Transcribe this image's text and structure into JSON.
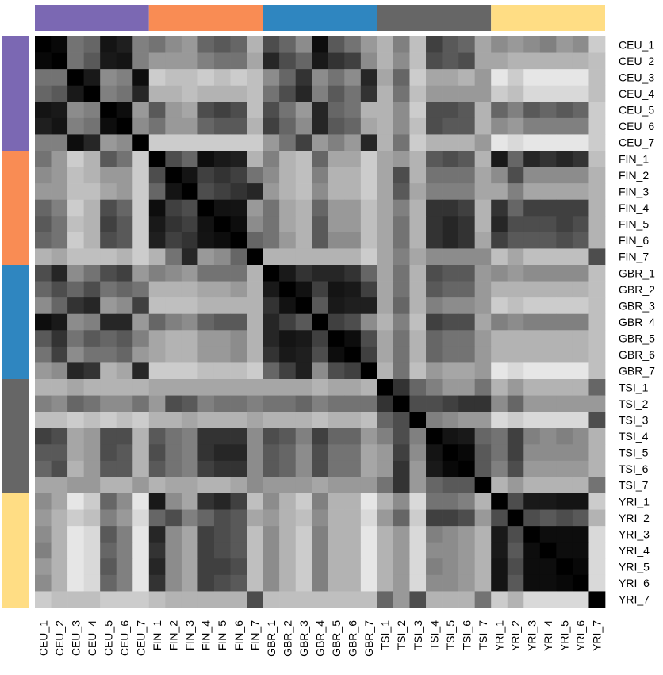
{
  "chart_data": {
    "type": "heatmap",
    "title": "",
    "xlabel": "",
    "ylabel": "",
    "colorscale": {
      "low": "#ffffff",
      "high": "#000000",
      "note_range": [
        0,
        1
      ]
    },
    "groups": [
      {
        "name": "CEU",
        "color": "#7B68B3",
        "members": [
          "CEU_1",
          "CEU_2",
          "CEU_3",
          "CEU_4",
          "CEU_5",
          "CEU_6",
          "CEU_7"
        ]
      },
      {
        "name": "FIN",
        "color": "#F98C54",
        "members": [
          "FIN_1",
          "FIN_2",
          "FIN_3",
          "FIN_4",
          "FIN_5",
          "FIN_6",
          "FIN_7"
        ]
      },
      {
        "name": "GBR",
        "color": "#2F86C0",
        "members": [
          "GBR_1",
          "GBR_2",
          "GBR_3",
          "GBR_4",
          "GBR_5",
          "GBR_6",
          "GBR_7"
        ]
      },
      {
        "name": "TSI",
        "color": "#666666",
        "members": [
          "TSI_1",
          "TSI_2",
          "TSI_3",
          "TSI_4",
          "TSI_5",
          "TSI_6",
          "TSI_7"
        ]
      },
      {
        "name": "YRI",
        "color": "#FFDD84",
        "members": [
          "YRI_1",
          "YRI_2",
          "YRI_3",
          "YRI_4",
          "YRI_5",
          "YRI_6",
          "YRI_7"
        ]
      }
    ],
    "labels": [
      "CEU_1",
      "CEU_2",
      "CEU_3",
      "CEU_4",
      "CEU_5",
      "CEU_6",
      "CEU_7",
      "FIN_1",
      "FIN_2",
      "FIN_3",
      "FIN_4",
      "FIN_5",
      "FIN_6",
      "FIN_7",
      "GBR_1",
      "GBR_2",
      "GBR_3",
      "GBR_4",
      "GBR_5",
      "GBR_6",
      "GBR_7",
      "TSI_1",
      "TSI_2",
      "TSI_3",
      "TSI_4",
      "TSI_5",
      "TSI_6",
      "TSI_7",
      "YRI_1",
      "YRI_2",
      "YRI_3",
      "YRI_4",
      "YRI_5",
      "YRI_6",
      "YRI_7"
    ],
    "matrix": [
      [
        1.0,
        0.97,
        0.55,
        0.6,
        0.92,
        0.88,
        0.5,
        0.55,
        0.45,
        0.4,
        0.6,
        0.65,
        0.6,
        0.3,
        0.7,
        0.6,
        0.45,
        0.95,
        0.65,
        0.55,
        0.4,
        0.3,
        0.5,
        0.25,
        0.75,
        0.65,
        0.6,
        0.35,
        0.45,
        0.4,
        0.45,
        0.5,
        0.4,
        0.45,
        0.2
      ],
      [
        0.97,
        1.0,
        0.55,
        0.65,
        0.9,
        0.92,
        0.5,
        0.4,
        0.4,
        0.4,
        0.5,
        0.55,
        0.55,
        0.35,
        0.85,
        0.7,
        0.6,
        0.9,
        0.8,
        0.75,
        0.45,
        0.3,
        0.45,
        0.25,
        0.7,
        0.65,
        0.7,
        0.35,
        0.35,
        0.3,
        0.3,
        0.3,
        0.3,
        0.3,
        0.25
      ],
      [
        0.55,
        0.55,
        1.0,
        0.9,
        0.45,
        0.5,
        0.95,
        0.2,
        0.25,
        0.25,
        0.2,
        0.25,
        0.2,
        0.25,
        0.45,
        0.6,
        0.8,
        0.45,
        0.55,
        0.45,
        0.85,
        0.35,
        0.6,
        0.2,
        0.35,
        0.35,
        0.3,
        0.4,
        0.1,
        0.2,
        0.1,
        0.1,
        0.1,
        0.1,
        0.25
      ],
      [
        0.6,
        0.65,
        0.9,
        1.0,
        0.5,
        0.55,
        0.85,
        0.3,
        0.3,
        0.25,
        0.3,
        0.3,
        0.3,
        0.25,
        0.55,
        0.7,
        0.85,
        0.5,
        0.65,
        0.55,
        0.8,
        0.3,
        0.55,
        0.25,
        0.4,
        0.4,
        0.4,
        0.4,
        0.2,
        0.25,
        0.15,
        0.15,
        0.15,
        0.15,
        0.25
      ],
      [
        0.92,
        0.9,
        0.45,
        0.5,
        1.0,
        0.95,
        0.4,
        0.65,
        0.4,
        0.35,
        0.7,
        0.75,
        0.7,
        0.25,
        0.7,
        0.55,
        0.4,
        0.85,
        0.6,
        0.55,
        0.3,
        0.3,
        0.45,
        0.2,
        0.7,
        0.7,
        0.65,
        0.3,
        0.6,
        0.5,
        0.65,
        0.6,
        0.65,
        0.6,
        0.2
      ],
      [
        0.88,
        0.92,
        0.5,
        0.55,
        0.95,
        1.0,
        0.45,
        0.55,
        0.4,
        0.4,
        0.6,
        0.65,
        0.65,
        0.3,
        0.75,
        0.6,
        0.45,
        0.85,
        0.65,
        0.6,
        0.35,
        0.3,
        0.45,
        0.25,
        0.7,
        0.65,
        0.65,
        0.3,
        0.45,
        0.4,
        0.5,
        0.5,
        0.5,
        0.5,
        0.2
      ],
      [
        0.5,
        0.5,
        0.95,
        0.85,
        0.4,
        0.45,
        1.0,
        0.2,
        0.2,
        0.2,
        0.2,
        0.2,
        0.2,
        0.2,
        0.4,
        0.55,
        0.75,
        0.4,
        0.5,
        0.4,
        0.85,
        0.3,
        0.55,
        0.2,
        0.3,
        0.3,
        0.3,
        0.4,
        0.1,
        0.15,
        0.1,
        0.1,
        0.1,
        0.1,
        0.2
      ],
      [
        0.55,
        0.4,
        0.2,
        0.3,
        0.65,
        0.55,
        0.2,
        1.0,
        0.7,
        0.6,
        0.95,
        0.9,
        0.88,
        0.3,
        0.5,
        0.3,
        0.25,
        0.6,
        0.35,
        0.35,
        0.2,
        0.35,
        0.4,
        0.3,
        0.65,
        0.7,
        0.65,
        0.3,
        0.9,
        0.6,
        0.85,
        0.8,
        0.85,
        0.8,
        0.25
      ],
      [
        0.45,
        0.4,
        0.25,
        0.3,
        0.4,
        0.4,
        0.2,
        0.7,
        1.0,
        0.92,
        0.75,
        0.8,
        0.75,
        0.55,
        0.45,
        0.3,
        0.25,
        0.5,
        0.3,
        0.3,
        0.2,
        0.35,
        0.7,
        0.3,
        0.55,
        0.55,
        0.55,
        0.35,
        0.45,
        0.7,
        0.45,
        0.45,
        0.45,
        0.45,
        0.3
      ],
      [
        0.4,
        0.4,
        0.25,
        0.25,
        0.35,
        0.4,
        0.2,
        0.6,
        0.92,
        1.0,
        0.7,
        0.75,
        0.8,
        0.85,
        0.4,
        0.3,
        0.25,
        0.45,
        0.3,
        0.3,
        0.2,
        0.35,
        0.65,
        0.35,
        0.5,
        0.5,
        0.5,
        0.35,
        0.35,
        0.5,
        0.35,
        0.35,
        0.35,
        0.35,
        0.3
      ],
      [
        0.6,
        0.5,
        0.2,
        0.3,
        0.7,
        0.6,
        0.2,
        0.95,
        0.75,
        0.7,
        1.0,
        0.93,
        0.92,
        0.4,
        0.55,
        0.35,
        0.3,
        0.6,
        0.4,
        0.4,
        0.25,
        0.35,
        0.5,
        0.3,
        0.8,
        0.8,
        0.75,
        0.3,
        0.8,
        0.6,
        0.75,
        0.75,
        0.75,
        0.75,
        0.3
      ],
      [
        0.65,
        0.55,
        0.25,
        0.3,
        0.75,
        0.65,
        0.2,
        0.9,
        0.8,
        0.75,
        0.93,
        1.0,
        0.95,
        0.45,
        0.55,
        0.35,
        0.3,
        0.65,
        0.4,
        0.4,
        0.25,
        0.35,
        0.55,
        0.3,
        0.8,
        0.85,
        0.8,
        0.3,
        0.85,
        0.7,
        0.7,
        0.7,
        0.75,
        0.7,
        0.3
      ],
      [
        0.6,
        0.55,
        0.2,
        0.3,
        0.7,
        0.65,
        0.2,
        0.88,
        0.75,
        0.8,
        0.92,
        0.95,
        1.0,
        0.6,
        0.55,
        0.4,
        0.3,
        0.65,
        0.45,
        0.45,
        0.25,
        0.35,
        0.55,
        0.3,
        0.8,
        0.85,
        0.8,
        0.35,
        0.75,
        0.65,
        0.65,
        0.65,
        0.7,
        0.65,
        0.3
      ],
      [
        0.3,
        0.35,
        0.25,
        0.25,
        0.25,
        0.3,
        0.2,
        0.3,
        0.55,
        0.85,
        0.4,
        0.45,
        0.6,
        1.0,
        0.3,
        0.3,
        0.3,
        0.3,
        0.3,
        0.3,
        0.2,
        0.35,
        0.5,
        0.35,
        0.45,
        0.45,
        0.45,
        0.45,
        0.25,
        0.35,
        0.25,
        0.25,
        0.25,
        0.25,
        0.7
      ],
      [
        0.7,
        0.85,
        0.45,
        0.55,
        0.7,
        0.75,
        0.4,
        0.5,
        0.45,
        0.4,
        0.55,
        0.55,
        0.55,
        0.3,
        1.0,
        0.9,
        0.8,
        0.85,
        0.85,
        0.8,
        0.6,
        0.35,
        0.55,
        0.3,
        0.7,
        0.65,
        0.65,
        0.4,
        0.45,
        0.4,
        0.45,
        0.45,
        0.45,
        0.45,
        0.25
      ],
      [
        0.6,
        0.7,
        0.6,
        0.7,
        0.55,
        0.6,
        0.55,
        0.3,
        0.3,
        0.3,
        0.35,
        0.35,
        0.4,
        0.3,
        0.9,
        1.0,
        0.93,
        0.75,
        0.92,
        0.9,
        0.75,
        0.35,
        0.55,
        0.3,
        0.65,
        0.6,
        0.6,
        0.4,
        0.3,
        0.3,
        0.3,
        0.3,
        0.3,
        0.3,
        0.25
      ],
      [
        0.45,
        0.6,
        0.8,
        0.85,
        0.4,
        0.45,
        0.75,
        0.25,
        0.25,
        0.25,
        0.3,
        0.3,
        0.3,
        0.3,
        0.8,
        0.93,
        1.0,
        0.65,
        0.9,
        0.88,
        0.88,
        0.35,
        0.6,
        0.3,
        0.5,
        0.45,
        0.45,
        0.4,
        0.2,
        0.25,
        0.2,
        0.2,
        0.2,
        0.2,
        0.25
      ],
      [
        0.95,
        0.9,
        0.45,
        0.5,
        0.85,
        0.85,
        0.4,
        0.6,
        0.5,
        0.45,
        0.6,
        0.65,
        0.65,
        0.3,
        0.85,
        0.75,
        0.65,
        1.0,
        0.75,
        0.7,
        0.45,
        0.3,
        0.5,
        0.25,
        0.75,
        0.7,
        0.7,
        0.35,
        0.5,
        0.45,
        0.5,
        0.5,
        0.5,
        0.5,
        0.25
      ],
      [
        0.65,
        0.8,
        0.55,
        0.65,
        0.6,
        0.65,
        0.5,
        0.35,
        0.3,
        0.3,
        0.4,
        0.4,
        0.45,
        0.3,
        0.85,
        0.92,
        0.9,
        0.75,
        1.0,
        0.95,
        0.7,
        0.35,
        0.55,
        0.3,
        0.6,
        0.55,
        0.55,
        0.4,
        0.3,
        0.3,
        0.3,
        0.3,
        0.3,
        0.3,
        0.25
      ],
      [
        0.55,
        0.75,
        0.45,
        0.55,
        0.55,
        0.6,
        0.4,
        0.35,
        0.3,
        0.3,
        0.4,
        0.4,
        0.45,
        0.3,
        0.8,
        0.9,
        0.88,
        0.7,
        0.95,
        1.0,
        0.75,
        0.35,
        0.55,
        0.3,
        0.6,
        0.55,
        0.55,
        0.4,
        0.3,
        0.3,
        0.3,
        0.3,
        0.3,
        0.3,
        0.25
      ],
      [
        0.4,
        0.45,
        0.85,
        0.8,
        0.3,
        0.35,
        0.85,
        0.2,
        0.2,
        0.2,
        0.25,
        0.25,
        0.25,
        0.2,
        0.6,
        0.75,
        0.88,
        0.45,
        0.7,
        0.75,
        1.0,
        0.3,
        0.55,
        0.25,
        0.4,
        0.35,
        0.35,
        0.4,
        0.1,
        0.15,
        0.1,
        0.1,
        0.1,
        0.1,
        0.25
      ],
      [
        0.3,
        0.3,
        0.35,
        0.3,
        0.3,
        0.3,
        0.3,
        0.35,
        0.35,
        0.35,
        0.35,
        0.35,
        0.35,
        0.35,
        0.35,
        0.35,
        0.35,
        0.3,
        0.35,
        0.35,
        0.3,
        1.0,
        0.8,
        0.6,
        0.5,
        0.4,
        0.4,
        0.55,
        0.3,
        0.4,
        0.3,
        0.3,
        0.3,
        0.3,
        0.6
      ],
      [
        0.5,
        0.45,
        0.6,
        0.55,
        0.45,
        0.45,
        0.55,
        0.4,
        0.7,
        0.65,
        0.5,
        0.55,
        0.55,
        0.5,
        0.55,
        0.55,
        0.6,
        0.5,
        0.55,
        0.55,
        0.55,
        0.8,
        1.0,
        0.7,
        0.7,
        0.75,
        0.8,
        0.8,
        0.45,
        0.6,
        0.4,
        0.4,
        0.4,
        0.4,
        0.4
      ],
      [
        0.25,
        0.25,
        0.2,
        0.25,
        0.2,
        0.25,
        0.2,
        0.3,
        0.3,
        0.35,
        0.3,
        0.3,
        0.3,
        0.35,
        0.3,
        0.3,
        0.3,
        0.25,
        0.3,
        0.3,
        0.25,
        0.6,
        0.7,
        1.0,
        0.5,
        0.45,
        0.4,
        0.4,
        0.15,
        0.2,
        0.15,
        0.15,
        0.15,
        0.15,
        0.7
      ],
      [
        0.75,
        0.7,
        0.35,
        0.4,
        0.7,
        0.7,
        0.3,
        0.65,
        0.55,
        0.5,
        0.8,
        0.8,
        0.8,
        0.45,
        0.7,
        0.65,
        0.5,
        0.75,
        0.6,
        0.6,
        0.4,
        0.5,
        0.7,
        0.5,
        1.0,
        0.92,
        0.9,
        0.6,
        0.55,
        0.75,
        0.5,
        0.45,
        0.5,
        0.45,
        0.3
      ],
      [
        0.65,
        0.65,
        0.35,
        0.4,
        0.7,
        0.65,
        0.3,
        0.7,
        0.55,
        0.5,
        0.8,
        0.85,
        0.85,
        0.45,
        0.65,
        0.6,
        0.45,
        0.7,
        0.55,
        0.55,
        0.35,
        0.4,
        0.75,
        0.45,
        0.92,
        1.0,
        0.97,
        0.65,
        0.55,
        0.75,
        0.45,
        0.45,
        0.45,
        0.45,
        0.3
      ],
      [
        0.6,
        0.7,
        0.3,
        0.4,
        0.65,
        0.65,
        0.3,
        0.65,
        0.55,
        0.5,
        0.75,
        0.8,
        0.8,
        0.45,
        0.65,
        0.6,
        0.45,
        0.7,
        0.55,
        0.55,
        0.35,
        0.4,
        0.8,
        0.4,
        0.9,
        0.97,
        1.0,
        0.65,
        0.5,
        0.7,
        0.4,
        0.4,
        0.4,
        0.4,
        0.3
      ],
      [
        0.35,
        0.35,
        0.4,
        0.4,
        0.3,
        0.3,
        0.4,
        0.3,
        0.35,
        0.35,
        0.3,
        0.3,
        0.35,
        0.45,
        0.4,
        0.4,
        0.4,
        0.35,
        0.4,
        0.4,
        0.4,
        0.55,
        0.8,
        0.4,
        0.6,
        0.65,
        0.65,
        1.0,
        0.3,
        0.4,
        0.3,
        0.3,
        0.3,
        0.3,
        0.55
      ],
      [
        0.45,
        0.35,
        0.1,
        0.2,
        0.6,
        0.45,
        0.1,
        0.9,
        0.45,
        0.35,
        0.8,
        0.85,
        0.75,
        0.25,
        0.45,
        0.3,
        0.2,
        0.5,
        0.3,
        0.3,
        0.1,
        0.3,
        0.45,
        0.15,
        0.55,
        0.55,
        0.5,
        0.3,
        1.0,
        0.7,
        0.9,
        0.9,
        0.92,
        0.92,
        0.2
      ],
      [
        0.4,
        0.3,
        0.2,
        0.25,
        0.5,
        0.4,
        0.15,
        0.6,
        0.7,
        0.5,
        0.6,
        0.7,
        0.65,
        0.35,
        0.4,
        0.3,
        0.25,
        0.45,
        0.3,
        0.3,
        0.15,
        0.4,
        0.6,
        0.2,
        0.75,
        0.75,
        0.7,
        0.4,
        0.7,
        1.0,
        0.7,
        0.65,
        0.7,
        0.65,
        0.3
      ],
      [
        0.45,
        0.3,
        0.1,
        0.15,
        0.65,
        0.5,
        0.1,
        0.85,
        0.45,
        0.35,
        0.75,
        0.7,
        0.65,
        0.25,
        0.45,
        0.3,
        0.2,
        0.5,
        0.3,
        0.3,
        0.1,
        0.3,
        0.4,
        0.15,
        0.5,
        0.45,
        0.4,
        0.3,
        0.9,
        0.7,
        1.0,
        0.95,
        0.95,
        0.95,
        0.15
      ],
      [
        0.5,
        0.3,
        0.1,
        0.15,
        0.6,
        0.5,
        0.1,
        0.8,
        0.45,
        0.35,
        0.75,
        0.7,
        0.65,
        0.25,
        0.45,
        0.3,
        0.2,
        0.5,
        0.3,
        0.3,
        0.1,
        0.3,
        0.4,
        0.15,
        0.45,
        0.45,
        0.4,
        0.3,
        0.9,
        0.65,
        0.95,
        1.0,
        0.95,
        0.95,
        0.15
      ],
      [
        0.4,
        0.3,
        0.1,
        0.15,
        0.65,
        0.5,
        0.1,
        0.85,
        0.45,
        0.35,
        0.75,
        0.75,
        0.7,
        0.25,
        0.45,
        0.3,
        0.2,
        0.5,
        0.3,
        0.3,
        0.1,
        0.3,
        0.4,
        0.15,
        0.5,
        0.45,
        0.4,
        0.3,
        0.92,
        0.7,
        0.95,
        0.95,
        1.0,
        0.97,
        0.15
      ],
      [
        0.45,
        0.3,
        0.1,
        0.15,
        0.6,
        0.5,
        0.1,
        0.8,
        0.45,
        0.35,
        0.75,
        0.7,
        0.65,
        0.25,
        0.45,
        0.3,
        0.2,
        0.5,
        0.3,
        0.3,
        0.1,
        0.3,
        0.4,
        0.15,
        0.45,
        0.45,
        0.4,
        0.3,
        0.92,
        0.65,
        0.95,
        0.95,
        0.97,
        1.0,
        0.15
      ],
      [
        0.2,
        0.25,
        0.25,
        0.25,
        0.2,
        0.2,
        0.2,
        0.25,
        0.3,
        0.3,
        0.3,
        0.3,
        0.3,
        0.7,
        0.25,
        0.25,
        0.25,
        0.25,
        0.25,
        0.25,
        0.25,
        0.6,
        0.4,
        0.7,
        0.3,
        0.3,
        0.3,
        0.55,
        0.2,
        0.3,
        0.15,
        0.15,
        0.15,
        0.15,
        1.0
      ]
    ]
  }
}
